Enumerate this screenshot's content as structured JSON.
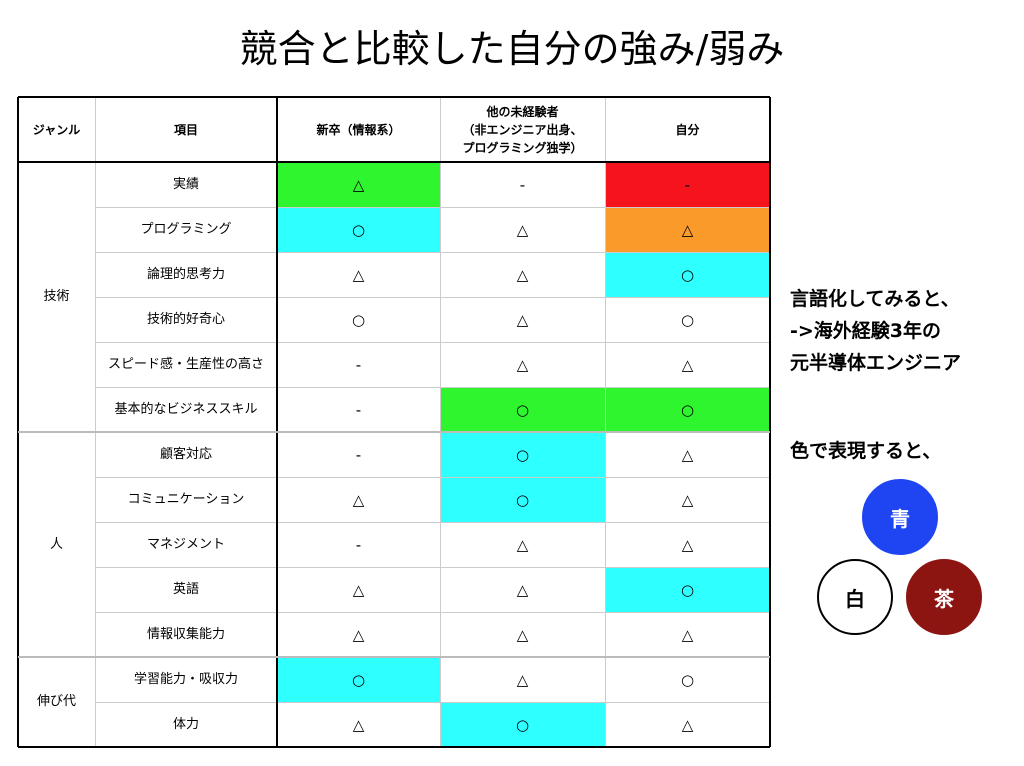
{
  "title": "競合と比較した自分の強み/弱み",
  "table": {
    "headers": [
      [
        "ジャンル"
      ],
      [
        "項目"
      ],
      [
        "新卒（情報系）"
      ],
      [
        "他の未経験者",
        "（非エンジニア出身、",
        "プログラミング独学）"
      ],
      [
        "自分"
      ]
    ],
    "groups": [
      {
        "genre": "技術",
        "rows": [
          {
            "item": "実績",
            "cells": [
              {
                "mark": "△",
                "color": "#2ef52e"
              },
              {
                "mark": "-",
                "color": "#ffffff"
              },
              {
                "mark": "-",
                "color": "#f5141e"
              }
            ]
          },
          {
            "item": "プログラミング",
            "cells": [
              {
                "mark": "○",
                "color": "#2effff"
              },
              {
                "mark": "△",
                "color": "#ffffff"
              },
              {
                "mark": "△",
                "color": "#fa9a2a"
              }
            ]
          },
          {
            "item": "論理的思考力",
            "cells": [
              {
                "mark": "△",
                "color": "#ffffff"
              },
              {
                "mark": "△",
                "color": "#ffffff"
              },
              {
                "mark": "○",
                "color": "#2effff"
              }
            ]
          },
          {
            "item": "技術的好奇心",
            "cells": [
              {
                "mark": "○",
                "color": "#ffffff"
              },
              {
                "mark": "△",
                "color": "#ffffff"
              },
              {
                "mark": "○",
                "color": "#ffffff"
              }
            ]
          },
          {
            "item": "スピード感・生産性の高さ",
            "cells": [
              {
                "mark": "-",
                "color": "#ffffff"
              },
              {
                "mark": "△",
                "color": "#ffffff"
              },
              {
                "mark": "△",
                "color": "#ffffff"
              }
            ]
          },
          {
            "item": "基本的なビジネススキル",
            "cells": [
              {
                "mark": "-",
                "color": "#ffffff"
              },
              {
                "mark": "○",
                "color": "#2ef52e"
              },
              {
                "mark": "○",
                "color": "#2ef52e"
              }
            ]
          }
        ]
      },
      {
        "genre": "人",
        "rows": [
          {
            "item": "顧客対応",
            "cells": [
              {
                "mark": "-",
                "color": "#ffffff"
              },
              {
                "mark": "○",
                "color": "#2effff"
              },
              {
                "mark": "△",
                "color": "#ffffff"
              }
            ]
          },
          {
            "item": "コミュニケーション",
            "cells": [
              {
                "mark": "△",
                "color": "#ffffff"
              },
              {
                "mark": "○",
                "color": "#2effff"
              },
              {
                "mark": "△",
                "color": "#ffffff"
              }
            ]
          },
          {
            "item": "マネジメント",
            "cells": [
              {
                "mark": "-",
                "color": "#ffffff"
              },
              {
                "mark": "△",
                "color": "#ffffff"
              },
              {
                "mark": "△",
                "color": "#ffffff"
              }
            ]
          },
          {
            "item": "英語",
            "cells": [
              {
                "mark": "△",
                "color": "#ffffff"
              },
              {
                "mark": "△",
                "color": "#ffffff"
              },
              {
                "mark": "○",
                "color": "#2effff"
              }
            ]
          },
          {
            "item": "情報収集能力",
            "cells": [
              {
                "mark": "△",
                "color": "#ffffff"
              },
              {
                "mark": "△",
                "color": "#ffffff"
              },
              {
                "mark": "△",
                "color": "#ffffff"
              }
            ]
          }
        ]
      },
      {
        "genre": "伸び代",
        "rows": [
          {
            "item": "学習能力・吸収力",
            "cells": [
              {
                "mark": "○",
                "color": "#2effff"
              },
              {
                "mark": "△",
                "color": "#ffffff"
              },
              {
                "mark": "○",
                "color": "#ffffff"
              }
            ]
          },
          {
            "item": "体力",
            "cells": [
              {
                "mark": "△",
                "color": "#ffffff"
              },
              {
                "mark": "○",
                "color": "#2effff"
              },
              {
                "mark": "△",
                "color": "#ffffff"
              }
            ]
          }
        ]
      }
    ]
  },
  "notes": {
    "lines": [
      "言語化してみると、",
      "->海外経験3年の",
      "元半導体エンジニア"
    ],
    "color_caption": "色で表現すると、",
    "circles": [
      {
        "label": "青",
        "color": "#1f45f2",
        "text_color": "#ffffff"
      },
      {
        "label": "白",
        "color": "#ffffff",
        "text_color": "#000000"
      },
      {
        "label": "茶",
        "color": "#8c1512",
        "text_color": "#ffffff"
      }
    ]
  }
}
